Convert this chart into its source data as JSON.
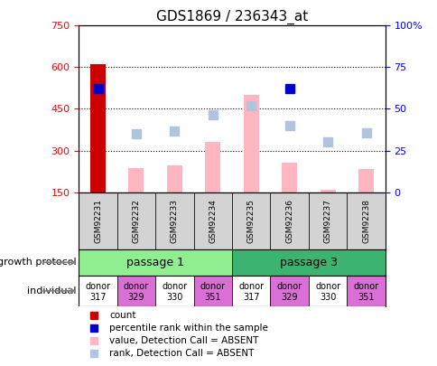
{
  "title": "GDS1869 / 236343_at",
  "samples": [
    "GSM92231",
    "GSM92232",
    "GSM92233",
    "GSM92234",
    "GSM92235",
    "GSM92236",
    "GSM92237",
    "GSM92238"
  ],
  "count_values": [
    610,
    null,
    null,
    null,
    null,
    null,
    null,
    null
  ],
  "percentile_rank": [
    62,
    null,
    null,
    null,
    null,
    62,
    null,
    null
  ],
  "value_absent": [
    null,
    237,
    247,
    330,
    500,
    255,
    160,
    235
  ],
  "rank_absent": [
    null,
    360,
    370,
    430,
    460,
    390,
    330,
    365
  ],
  "ylim_left": [
    150,
    750
  ],
  "ylim_right": [
    0,
    100
  ],
  "yticks_left": [
    150,
    300,
    450,
    600,
    750
  ],
  "yticks_right": [
    0,
    25,
    50,
    75,
    100
  ],
  "passage_groups": [
    {
      "label": "passage 1",
      "samples": [
        0,
        1,
        2,
        3
      ],
      "color": "#90ee90"
    },
    {
      "label": "passage 3",
      "samples": [
        4,
        5,
        6,
        7
      ],
      "color": "#3cb371"
    }
  ],
  "individual_labels": [
    {
      "text": "donor\n317",
      "color": "#ffffff"
    },
    {
      "text": "donor\n329",
      "color": "#da70d6"
    },
    {
      "text": "donor\n330",
      "color": "#ffffff"
    },
    {
      "text": "donor\n351",
      "color": "#da70d6"
    },
    {
      "text": "donor\n317",
      "color": "#ffffff"
    },
    {
      "text": "donor\n329",
      "color": "#da70d6"
    },
    {
      "text": "donor\n330",
      "color": "#ffffff"
    },
    {
      "text": "donor\n351",
      "color": "#da70d6"
    }
  ],
  "individual_bg": [
    "#ffffff",
    "#da70d6",
    "#ffffff",
    "#da70d6",
    "#ffffff",
    "#da70d6",
    "#ffffff",
    "#da70d6"
  ],
  "bar_width": 0.35,
  "count_color": "#cc0000",
  "value_absent_color": "#ffb6c1",
  "rank_absent_color": "#b0c4de",
  "percentile_color": "#0000cc",
  "legend_items": [
    {
      "label": "count",
      "color": "#cc0000",
      "marker": "s"
    },
    {
      "label": "percentile rank within the sample",
      "color": "#0000cc",
      "marker": "s"
    },
    {
      "label": "value, Detection Call = ABSENT",
      "color": "#ffb6c1",
      "marker": "s"
    },
    {
      "label": "rank, Detection Call = ABSENT",
      "color": "#b0c4de",
      "marker": "s"
    }
  ]
}
